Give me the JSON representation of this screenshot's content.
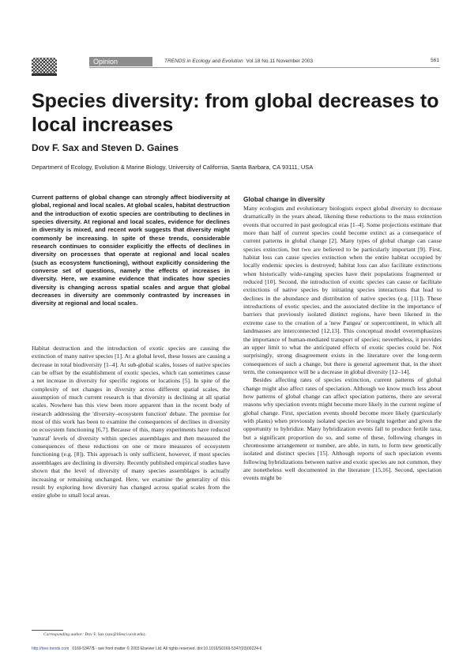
{
  "header": {
    "logo_icon": "elsevier-tree-logo",
    "tag": "Opinion",
    "journal_name": "TRENDS in Ecology and Evolution",
    "journal_issue": "Vol.18 No.11 November 2003",
    "page_number": "561"
  },
  "article": {
    "title": "Species diversity: from global decreases to local increases",
    "authors": "Dov F. Sax and Steven D. Gaines",
    "affiliation": "Department of Ecology, Evolution & Marine Biology, University of California, Santa Barbara, CA 93111, USA",
    "abstract": "Current patterns of global change can strongly affect biodiversity at global, regional and local scales. At global scales, habitat destruction and the introduction of exotic species are contributing to declines in species diversity. At regional and local scales, evidence for declines in diversity is mixed, and recent work suggests that diversity might commonly be increasing. In spite of these trends, considerable research continues to consider explicitly the effects of declines in diversity on processes that operate at regional and local scales (such as ecosystem functioning), without explicitly considering the converse set of questions, namely the effects of increases in diversity. Here, we examine evidence that indicates how species diversity is changing across spatial scales and argue that global decreases in diversity are commonly contrasted by increases in diversity at regional and local scales.",
    "intro": "Habitat destruction and the introduction of exotic species are causing the extinction of many native species [1]. At a global level, these losses are causing a decrease in total biodiversity [1–4]. At sub-global scales, losses of native species can be offset by the establishment of exotic species, which can sometimes cause a net increase in diversity for specific regions or locations [5]. In spite of the complexity of net changes in diversity across different spatial scales, the assumption of much current research is that diversity is declining at all spatial scales. Nowhere has this view been more apparent than in the recent body of research addressing the 'diversity–ecosystem function' debate. The premise for most of this work has been to examine the consequences of declines in diversity on ecosystem functioning [6,7]. Because of this, many experiments have reduced 'natural' levels of diversity within species assemblages and then measured the consequences of these reductions on one or more measures of ecosystem functioning (e.g. [8]). This approach is only sufficient, however, if most species assemblages are declining in diversity. Recently published empirical studies have shown that the level of diversity of many species assemblages is actually increasing or remaining unchanged. Here, we examine the generality of this result by exploring how diversity has changed across spatial scales from the entire globe to small local areas.",
    "section_heading": "Global change in diversity",
    "section_para1": "Many ecologists and evolutionary biologists expect global diversity to decrease dramatically in the years ahead, likening these reductions to the mass extinction events that occurred in past geological eras [1–4]. Some projections estimate that more than half of current species could become extinct as a consequence of current patterns in global change [2]. Many types of global change can cause species extinction, but two are believed to be particularly important [9]. First, habitat loss can cause species extinction when the entire habitat occupied by locally endemic species is destroyed; habitat loss can also facilitate extinctions when historically wide-ranging species have their populations fragmented or reduced [10]. Second, the introduction of exotic species can cause or facilitate extinctions of native species by initiating species interactions that lead to declines in the abundance and distribution of native species (e.g. [11]). These introductions of exotic species, and the associated decline in the importance of barriers that previously isolated distinct regions, have been likened in the extreme case to the creation of a 'new Pangea' or supercontinent, in which all landmasses are interconnected [12,13]. This conceptual model overemphasizes the importance of human-mediated transport of species; nevertheless, it provides an upper limit to what the anticipated effects of exotic species could be. Not surprisingly, strong disagreement exists in the literature over the long-term consequences of such a change, but there is general agreement that, in the short term, the consequence will be a decrease in global diversity [12–14].",
    "section_para2": "Besides affecting rates of species extinction, current patterns of global change might also affect rates of speciation. Although we know much less about how patterns of global change can affect speciation patterns, there are several reasons why speciation events might become more likely in the current regime of global change. First, speciation events should become more likely (particularly with plants) when previously isolated species are brought together and given the opportunity to hybridize. Many hybridization events fail to produce fertile taxa, but a significant proportion do so, and some of these, following changes in chromosome arrangement or number, are able, in turn, to form new genetically isolated and distinct species [15]. Although reports of such speciation events following hybridizations between native and exotic species are not common, they are nonetheless well documented in the literature [15,16]. Second, speciation events might be"
  },
  "footnote": {
    "label": "Corresponding author:",
    "text": "Dov F. Sax (sax@lifesci.ucsb.edu)."
  },
  "footer": {
    "url": "http://tree.trends.com",
    "text": "0169-5347/$ - see front matter © 2003 Elsevier Ltd. All rights reserved. doi:10.1016/S0169-5347(03)00224-6"
  }
}
